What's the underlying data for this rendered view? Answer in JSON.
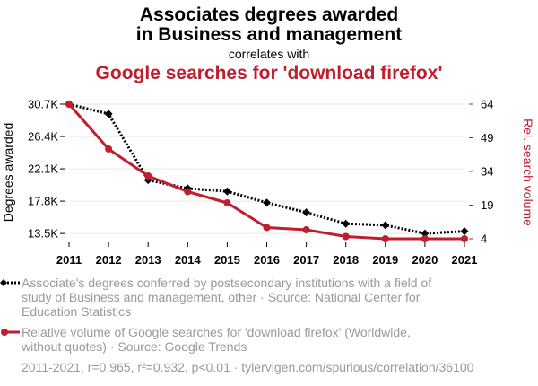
{
  "titles": {
    "line1": "Associates degrees awarded",
    "line2": "in Business and management",
    "correlates": "correlates with",
    "line3": "Google searches for 'download firefox'"
  },
  "colors": {
    "series1": "#000000",
    "series2": "#be1e2d",
    "grid": "#e6e6e6",
    "legend_text": "#999999"
  },
  "chart_data": {
    "type": "line",
    "x": [
      2011,
      2012,
      2013,
      2014,
      2015,
      2016,
      2017,
      2018,
      2019,
      2020,
      2021
    ],
    "xlabel": "",
    "y_left": {
      "label": "Degrees awarded",
      "range": [
        12800,
        30700
      ],
      "ticks": [
        13500,
        17800,
        22100,
        26400,
        30700
      ],
      "tick_labels": [
        "13.5K",
        "17.8K",
        "22.1K",
        "26.4K",
        "30.7K"
      ]
    },
    "y_right": {
      "label": "Rel. search volume",
      "range": [
        4,
        64
      ],
      "ticks": [
        4,
        19,
        34,
        49,
        64
      ],
      "tick_labels": [
        "4",
        "19",
        "34",
        "49",
        "64"
      ]
    },
    "grid": true,
    "series": [
      {
        "axis": "left",
        "style": "dotted",
        "marker": "diamond",
        "values": [
          30700,
          29400,
          20600,
          19500,
          19100,
          17600,
          16300,
          14800,
          14600,
          13500,
          13800
        ]
      },
      {
        "axis": "right",
        "style": "solid",
        "marker": "circle",
        "values": [
          64,
          44,
          32,
          25,
          20,
          9,
          8,
          5,
          4,
          4,
          4
        ]
      }
    ]
  },
  "legend": {
    "series1_lines": [
      "Associate's degrees conferred by postsecondary institutions with a field of",
      "study of Business and management, other · Source: National Center for",
      "Education Statistics"
    ],
    "series2_lines": [
      "Relative volume of Google searches for 'download firefox' (Worldwide,",
      "without quotes) · Source: Google Trends"
    ]
  },
  "footer": "2011-2021, r=0.965, r²=0.932, p<0.01 · tylervigen.com/spurious/correlation/36100"
}
